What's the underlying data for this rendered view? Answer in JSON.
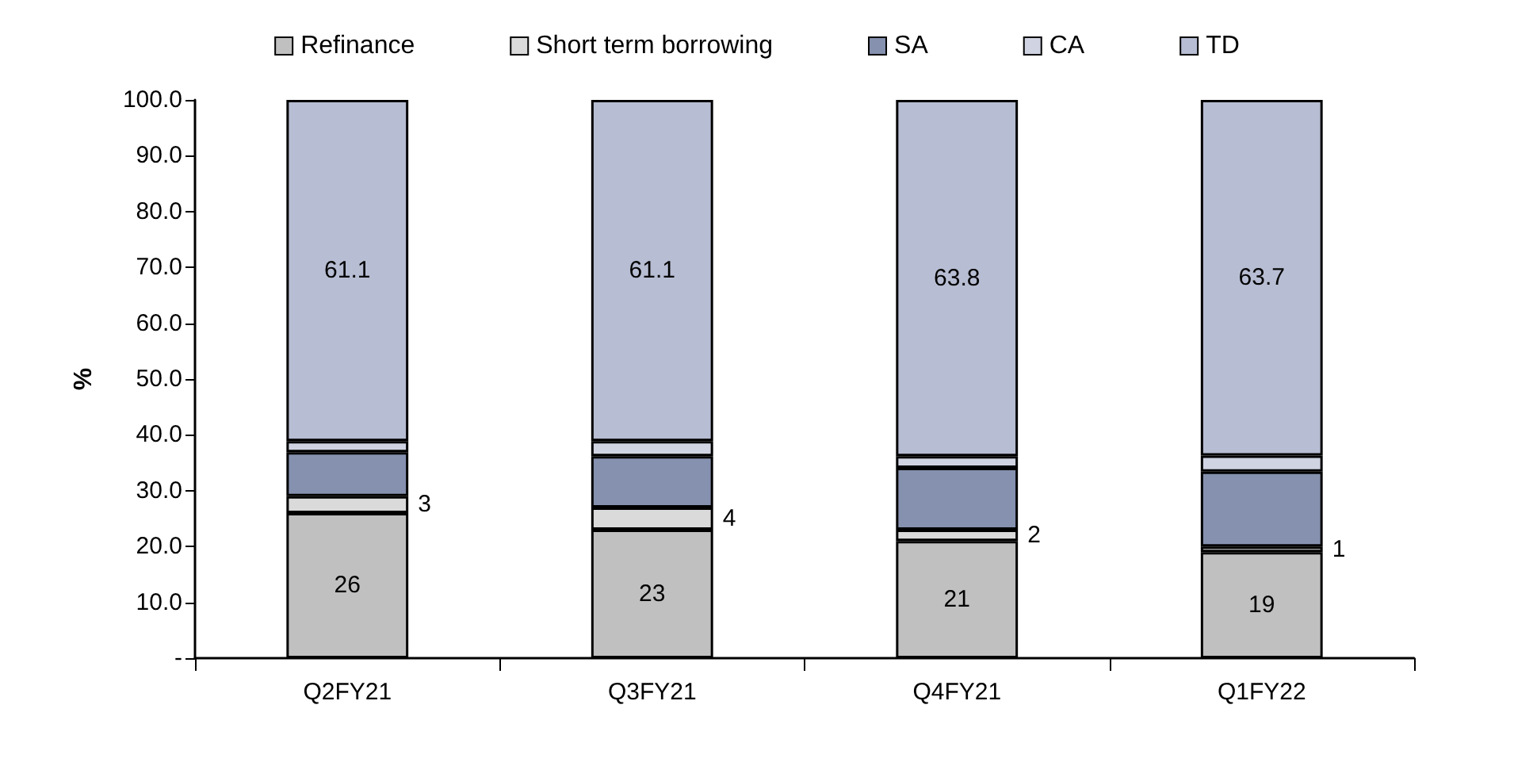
{
  "chart_data": {
    "type": "bar",
    "stacked": true,
    "ylabel": "%",
    "categories": [
      "Q2FY21",
      "Q3FY21",
      "Q4FY21",
      "Q1FY22"
    ],
    "series": [
      {
        "name": "Refinance",
        "color": "#c0c0c0",
        "values": [
          26,
          23,
          21,
          19
        ],
        "value_labels": [
          "26",
          "23",
          "21",
          "19"
        ]
      },
      {
        "name": "Short term borrowing",
        "color": "#dadada",
        "values": [
          3,
          4,
          2,
          1
        ],
        "value_labels": [
          "3",
          "4",
          "2",
          "1"
        ]
      },
      {
        "name": "SA",
        "color": "#8591ae",
        "values": [
          7.9,
          9.2,
          11.1,
          13.4
        ]
      },
      {
        "name": "CA",
        "color": "#d0d4e2",
        "values": [
          2,
          2.7,
          2.1,
          2.9
        ]
      },
      {
        "name": "TD",
        "color": "#b7bdd2",
        "values": [
          61.1,
          61.1,
          63.8,
          63.7
        ],
        "value_labels": [
          "61.1",
          "61.1",
          "63.8",
          "63.7"
        ]
      }
    ],
    "ylim": [
      0,
      100
    ],
    "yticks": [
      {
        "value": 0,
        "label": "-"
      },
      {
        "value": 10,
        "label": "10.0"
      },
      {
        "value": 20,
        "label": "20.0"
      },
      {
        "value": 30,
        "label": "30.0"
      },
      {
        "value": 40,
        "label": "40.0"
      },
      {
        "value": 50,
        "label": "50.0"
      },
      {
        "value": 60,
        "label": "60.0"
      },
      {
        "value": 70,
        "label": "70.0"
      },
      {
        "value": 80,
        "label": "80.0"
      },
      {
        "value": 90,
        "label": "90.0"
      },
      {
        "value": 100,
        "label": "100.0"
      }
    ],
    "grid": false,
    "legend": "top"
  }
}
